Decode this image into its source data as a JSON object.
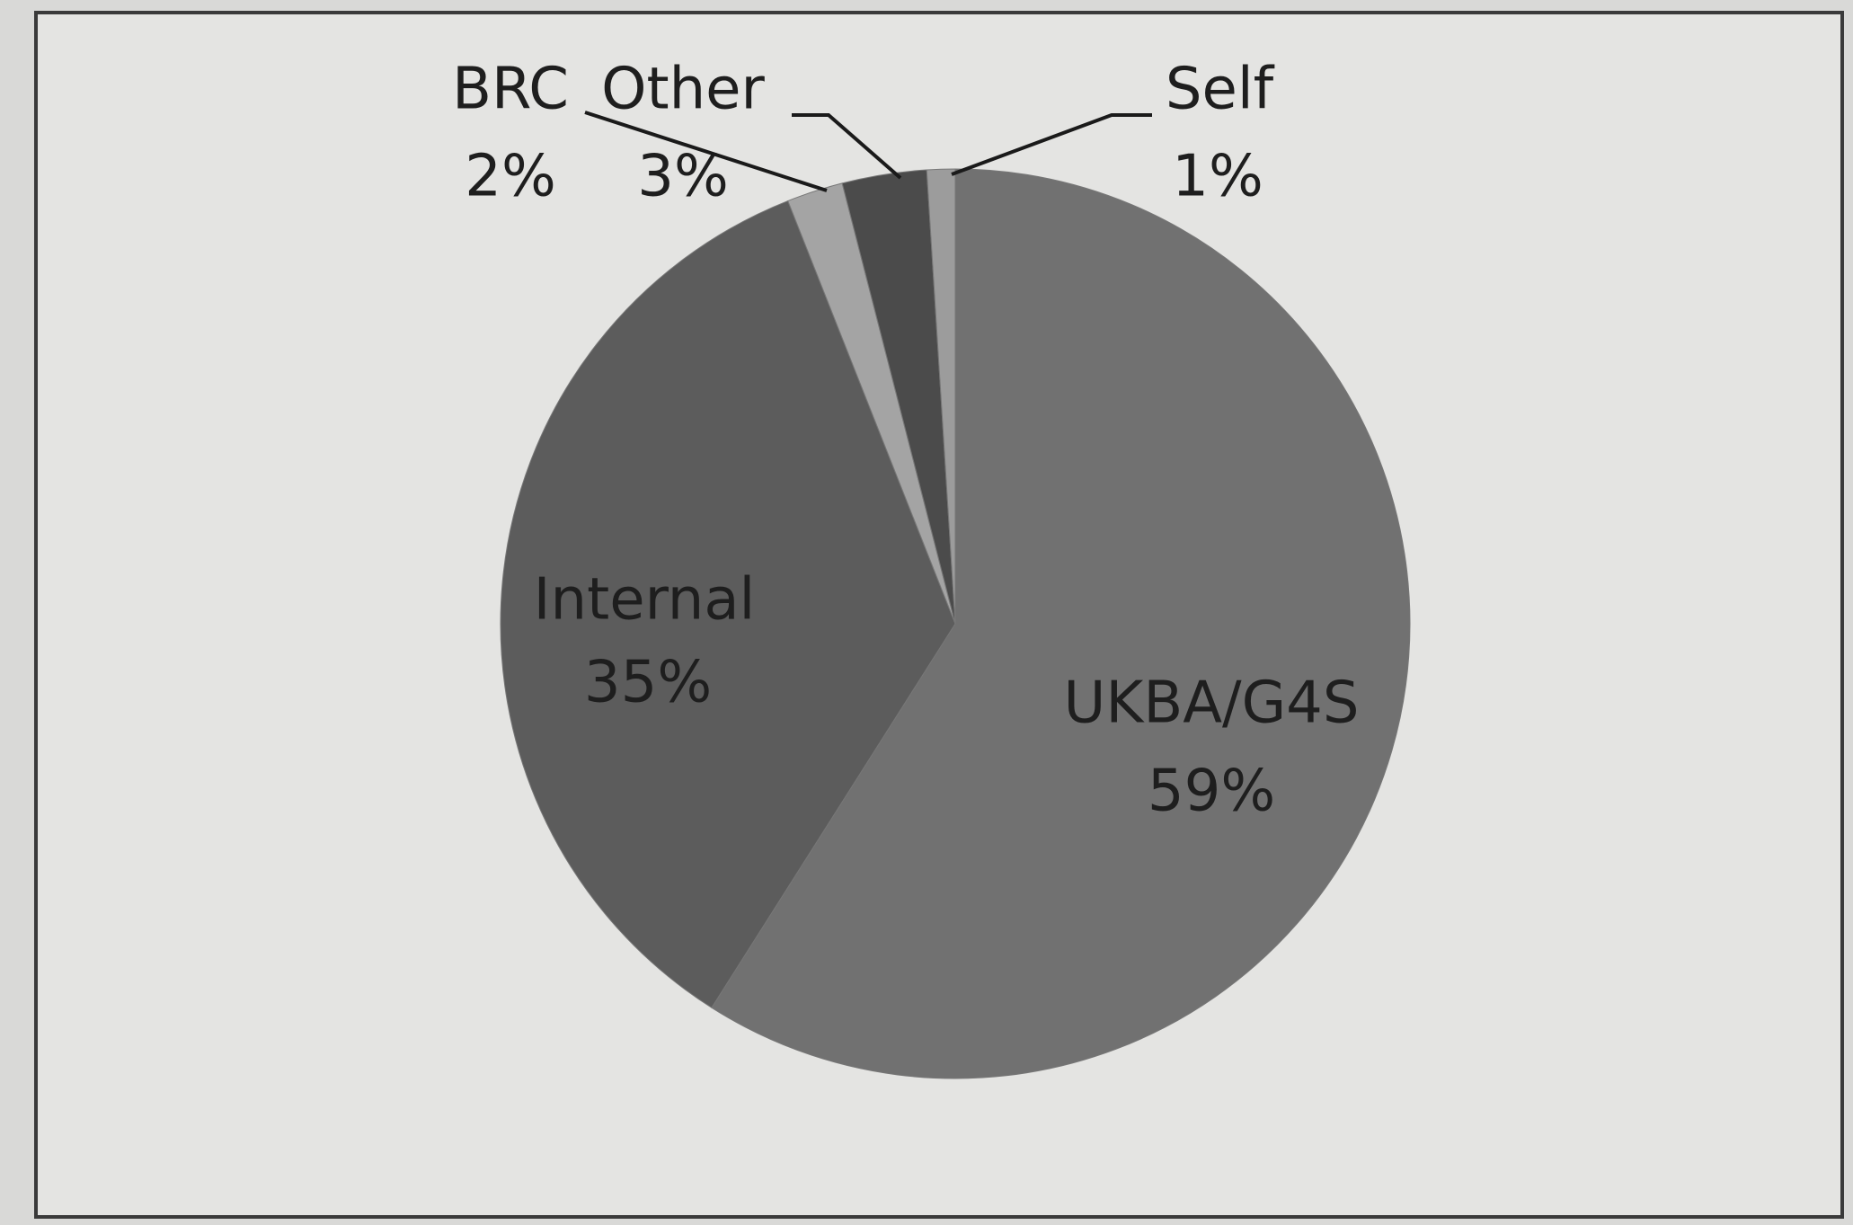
{
  "chart_data": {
    "type": "pie",
    "categories": [
      "UKBA/G4S",
      "Internal",
      "BRC",
      "Other",
      "Self"
    ],
    "values": [
      59,
      35,
      2,
      3,
      1
    ],
    "value_labels": [
      "59%",
      "35%",
      "2%",
      "3%",
      "1%"
    ],
    "colors": [
      "#717171",
      "#5c5c5c",
      "#a4a4a4",
      "#4b4b4b",
      "#9c9c9c"
    ]
  }
}
